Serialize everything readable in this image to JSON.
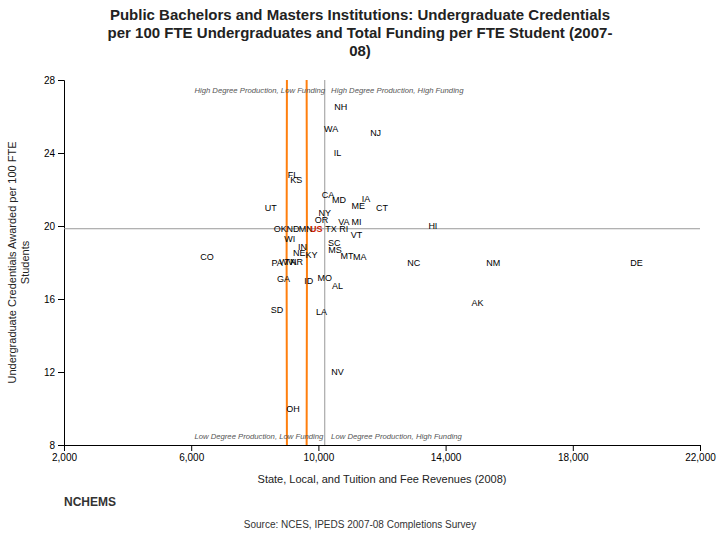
{
  "chart_data": {
    "type": "scatter",
    "title": "Public Bachelors and Masters Institutions: Undergraduate Credentials\nper 100 FTE Undergraduates and Total Funding per FTE Student (2007-\n08)",
    "xlabel": "State, Local, and Tuition and Fee Revenues (2008)",
    "ylabel": "Undergraduate Credentials Awarded per 100 FTE\nStudents",
    "labels": [
      "NH",
      "WA",
      "NJ",
      "IL",
      "FL",
      "KS",
      "CA",
      "MD",
      "IA",
      "ME",
      "CT",
      "UT",
      "NY",
      "OR",
      "VA",
      "MI",
      "HI",
      "OK",
      "ND",
      "MN",
      "US",
      "TX",
      "RI",
      "VT",
      "WI",
      "SC",
      "IN",
      "MS",
      "NE",
      "KY",
      "MT",
      "MA",
      "CO",
      "WV",
      "TN",
      "AR",
      "PA",
      "NC",
      "NM",
      "DE",
      "GA",
      "MO",
      "ID",
      "AL",
      "AK",
      "SD",
      "LA",
      "NV",
      "OH"
    ],
    "x": [
      10700,
      10400,
      11800,
      10600,
      9200,
      9300,
      10300,
      10650,
      11500,
      11250,
      12000,
      8500,
      10200,
      10100,
      10800,
      11200,
      13600,
      8800,
      9200,
      9600,
      9930,
      10400,
      10800,
      11200,
      9100,
      10500,
      9500,
      10520,
      9400,
      9780,
      10900,
      11300,
      6500,
      9000,
      9120,
      9320,
      8700,
      13000,
      15500,
      20000,
      8900,
      10200,
      9700,
      10600,
      15000,
      8700,
      10100,
      10600,
      9200
    ],
    "values": [
      26.5,
      25.3,
      25.1,
      24.0,
      22.8,
      22.5,
      21.7,
      21.45,
      21.5,
      21.1,
      21.0,
      21.0,
      20.7,
      20.35,
      20.2,
      20.2,
      20.0,
      19.85,
      19.85,
      19.85,
      19.85,
      19.85,
      19.85,
      19.5,
      19.3,
      19.05,
      18.85,
      18.7,
      18.5,
      18.4,
      18.35,
      18.3,
      18.3,
      18.05,
      18.05,
      18.05,
      18.0,
      18.0,
      18.0,
      18.0,
      17.1,
      17.15,
      17.0,
      16.7,
      15.8,
      15.4,
      15.3,
      12.0,
      10.0
    ],
    "colors": [
      "#000000",
      "#000000",
      "#000000",
      "#000000",
      "#000000",
      "#000000",
      "#000000",
      "#000000",
      "#000000",
      "#000000",
      "#000000",
      "#000000",
      "#000000",
      "#000000",
      "#000000",
      "#000000",
      "#000000",
      "#000000",
      "#000000",
      "#000000",
      "#CC2200",
      "#000000",
      "#000000",
      "#000000",
      "#000000",
      "#000000",
      "#000000",
      "#000000",
      "#000000",
      "#000000",
      "#000000",
      "#000000",
      "#000000",
      "#000000",
      "#000000",
      "#000000",
      "#000000",
      "#000000",
      "#000000",
      "#000000",
      "#000000",
      "#000000",
      "#000000",
      "#000000",
      "#000000",
      "#000000",
      "#000000",
      "#000000",
      "#000000"
    ],
    "xlim": [
      2000,
      22000
    ],
    "ylim": [
      8,
      28
    ],
    "xticks": [
      {
        "value": 2000,
        "label": "2,000"
      },
      {
        "value": 6000,
        "label": "6,000"
      },
      {
        "value": 10000,
        "label": "10,000"
      },
      {
        "value": 14000,
        "label": "14,000"
      },
      {
        "value": 18000,
        "label": "18,000"
      },
      {
        "value": 22000,
        "label": "22,000"
      }
    ],
    "yticks": [
      8,
      12,
      16,
      20,
      24,
      28
    ],
    "grid": false,
    "reference_lines": [
      {
        "axis": "y",
        "value": 19.85
      },
      {
        "axis": "x",
        "value": 10200
      }
    ],
    "highlight_circles": [
      {
        "x": 9320,
        "y": 18.05,
        "radius": 320
      }
    ],
    "annotations": [
      {
        "text": "High Degree Production, Low Funding",
        "x": 6100,
        "y": 27.6
      },
      {
        "text": "High Degree Production, High Funding",
        "x": 10400,
        "y": 27.6
      },
      {
        "text": "Low Degree Production, Low Funding",
        "x": 6100,
        "y": 8.35
      },
      {
        "text": "Low Degree Production, High Funding",
        "x": 10400,
        "y": 8.35
      }
    ],
    "logo_text": "NCHEMS",
    "source": "Source: NCES, IPEDS 2007-08 Completions Survey"
  }
}
